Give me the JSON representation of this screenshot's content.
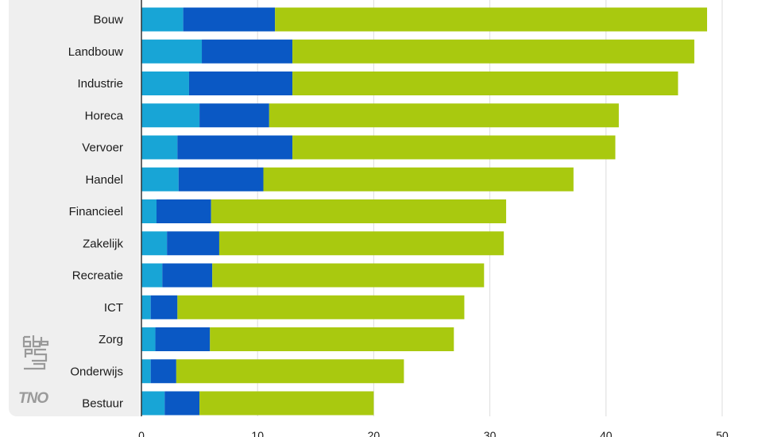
{
  "chart_data": {
    "type": "bar",
    "orientation": "horizontal",
    "stacked": true,
    "title": "",
    "xlabel": "",
    "ylabel": "",
    "xlim": [
      0,
      50
    ],
    "xticks": [
      0,
      10,
      20,
      30,
      40,
      50
    ],
    "grid": "vertical",
    "legend": "none",
    "categories": [
      "Bouw",
      "Landbouw",
      "Industrie",
      "Horeca",
      "Vervoer",
      "Handel",
      "Financieel",
      "Zakelijk",
      "Recreatie",
      "ICT",
      "Zorg",
      "Onderwijs",
      "Bestuur"
    ],
    "series": [
      {
        "color": "#18a5d6",
        "values": [
          3.6,
          5.2,
          4.1,
          5.0,
          3.1,
          3.2,
          1.3,
          2.2,
          1.8,
          0.8,
          1.2,
          0.8,
          2.0
        ]
      },
      {
        "color": "#0a58c4",
        "values": [
          7.9,
          7.8,
          8.9,
          6.0,
          9.9,
          7.3,
          4.7,
          4.5,
          4.3,
          2.3,
          4.7,
          2.2,
          3.0
        ]
      },
      {
        "color": "#a9c90f",
        "values": [
          37.2,
          34.6,
          33.2,
          30.1,
          27.8,
          26.7,
          25.4,
          24.5,
          23.4,
          24.7,
          21.0,
          19.6,
          15.0
        ]
      }
    ]
  },
  "logos": {
    "cbs": "cbs",
    "tno": "TNO"
  },
  "colors": {
    "panel": "#efefef",
    "grid": "#dcdcdc",
    "axis": "#333333",
    "logo": "#9a9a9a"
  }
}
